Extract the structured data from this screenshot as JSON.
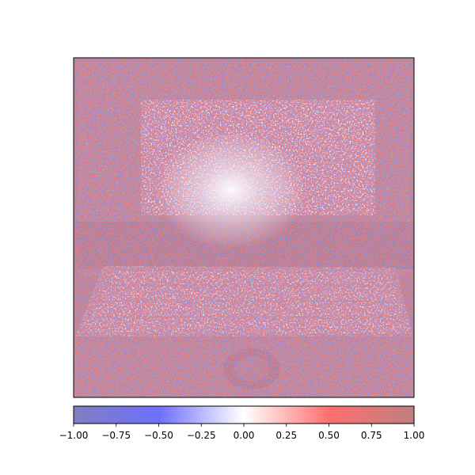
{
  "chart_data": {
    "type": "heatmap",
    "description_overlay": "attribution heatmap overlaid on a grayscale photo of a laptop",
    "xticks_visible": false,
    "yticks_visible": false,
    "colorbar": {
      "orientation": "horizontal",
      "range": [
        -1.0,
        1.0
      ],
      "ticks": [
        -1.0,
        -0.75,
        -0.5,
        -0.25,
        0.0,
        0.25,
        0.5,
        0.75,
        1.0
      ],
      "tick_labels": [
        "−1.00",
        "−0.75",
        "−0.50",
        "−0.25",
        "0.00",
        "0.25",
        "0.50",
        "0.75",
        "1.00"
      ],
      "colormap_stops": [
        "#7f7fbf",
        "#6f6fff",
        "#ffffff",
        "#ff6f6f",
        "#bf7f7f"
      ]
    },
    "title": "",
    "xlabel": "",
    "ylabel": ""
  }
}
